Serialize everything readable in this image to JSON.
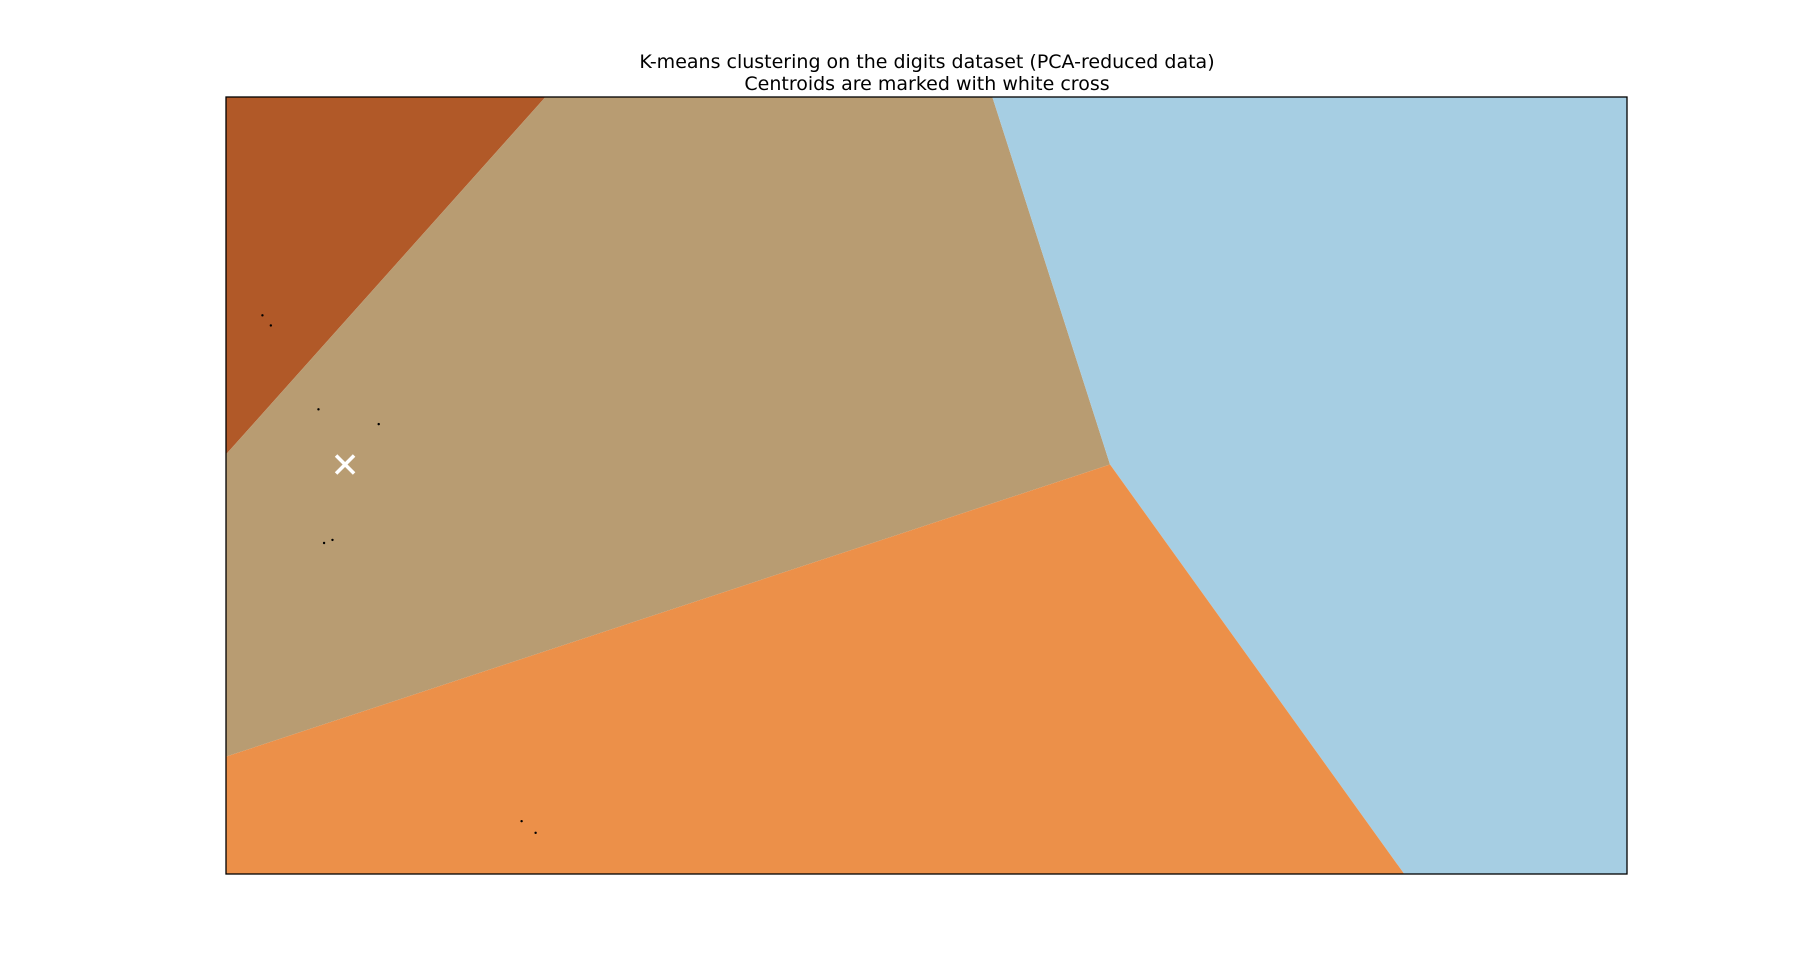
{
  "chart_data": {
    "type": "scatter",
    "title": "K-means clustering on the digits dataset (PCA-reduced data)",
    "subtitle": "Centroids are marked with white cross",
    "xlabel": "",
    "ylabel": "",
    "xlim": [
      0,
      100
    ],
    "ylim": [
      0,
      100
    ],
    "ticks_visible": false,
    "grid": false,
    "legend": "none",
    "regions": [
      {
        "id": "region-dark-orange",
        "color": "#b15928",
        "polygon": [
          [
            0,
            100
          ],
          [
            22.8,
            100
          ],
          [
            0,
            54
          ]
        ]
      },
      {
        "id": "region-tan",
        "color": "#b89c72",
        "polygon": [
          [
            22.8,
            100
          ],
          [
            54.7,
            100
          ],
          [
            63.1,
            52.7
          ],
          [
            0,
            15.1
          ],
          [
            0,
            54
          ]
        ]
      },
      {
        "id": "region-light-blue",
        "color": "#a6cee3",
        "polygon": [
          [
            54.7,
            100
          ],
          [
            100,
            100
          ],
          [
            100,
            0
          ],
          [
            84.1,
            0
          ],
          [
            63.1,
            52.7
          ]
        ]
      },
      {
        "id": "region-orange",
        "color": "#ec9049",
        "polygon": [
          [
            0,
            15.1
          ],
          [
            63.1,
            52.7
          ],
          [
            84.1,
            0
          ],
          [
            0,
            0
          ]
        ]
      }
    ],
    "points": [
      {
        "x": 2.6,
        "y": 71.9
      },
      {
        "x": 3.2,
        "y": 70.6
      },
      {
        "x": 6.6,
        "y": 59.8
      },
      {
        "x": 10.9,
        "y": 57.9
      },
      {
        "x": 7.0,
        "y": 42.6
      },
      {
        "x": 7.6,
        "y": 43.0
      },
      {
        "x": 21.1,
        "y": 6.8
      },
      {
        "x": 22.1,
        "y": 5.3
      }
    ],
    "centroids": [
      {
        "x": 8.5,
        "y": 52.7
      }
    ],
    "point_color": "#000000",
    "centroid_color": "#ffffff"
  }
}
